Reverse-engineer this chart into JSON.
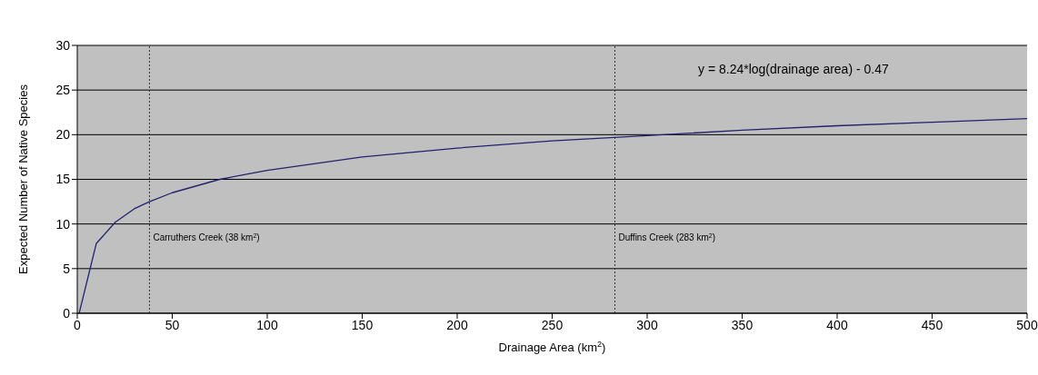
{
  "chart_data": {
    "type": "line",
    "xlabel": "Drainage Area (km$^{2}$)",
    "ylabel": "Expected Number of Native Species",
    "x": [
      1,
      10,
      20,
      30,
      38,
      50,
      75,
      100,
      150,
      200,
      250,
      300,
      350,
      400,
      450,
      500
    ],
    "series": [
      {
        "color": "#22226e",
        "values": [
          0,
          7.8,
          10.2,
          11.7,
          12.5,
          13.5,
          15.0,
          16.0,
          17.5,
          18.5,
          19.3,
          19.9,
          20.5,
          21.0,
          21.4,
          21.8
        ]
      }
    ],
    "xlim": [
      0,
      500
    ],
    "xticks": [
      0,
      50,
      100,
      150,
      200,
      250,
      300,
      350,
      400,
      450,
      500
    ],
    "ylim": [
      0,
      30
    ],
    "yticks": [
      0,
      5,
      10,
      15,
      20,
      25,
      30
    ],
    "grid": "y",
    "legend": false,
    "marker": "none",
    "line_style": "solid",
    "ref_lines": [
      {
        "axis": "x",
        "value": 38,
        "label": "Carruthers Creek (38 km$^{2}$)",
        "line_style": "dotted",
        "color": "#333333"
      },
      {
        "axis": "x",
        "value": 283,
        "label": "Duffins Creek (283 km$^{2}$)",
        "line_style": "dotted",
        "color": "#333333"
      }
    ],
    "annotations": [
      "y = 8.24*log(drainage area) - 0.47"
    ]
  }
}
